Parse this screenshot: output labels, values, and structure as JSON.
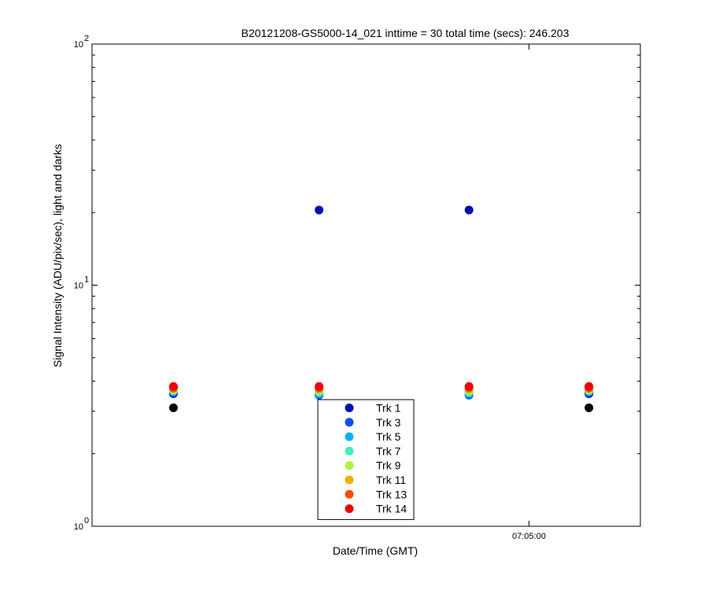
{
  "chart_data": {
    "type": "scatter",
    "title": "B20121208-GS5000-14_021 inttime = 30 total time (secs): 246.203",
    "xlabel": "Date/Time (GMT)",
    "ylabel": "Signal Intensity (ADU/pix/sec), light and darks",
    "yscale": "log",
    "ylim": [
      1,
      100
    ],
    "yticks": [
      {
        "base": "10",
        "exp": "0"
      },
      {
        "base": "10",
        "exp": "1"
      },
      {
        "base": "10",
        "exp": "2"
      }
    ],
    "xlim": [
      "07:03:18",
      "07:05:26"
    ],
    "xticks": [
      "07:05:00"
    ],
    "legend_position": "bottom-center",
    "grid": false,
    "series": [
      {
        "name": "Trk 1",
        "color": "#0010b0",
        "points": [
          {
            "x": "07:03:37",
            "y": 3.55
          },
          {
            "x": "07:04:11",
            "y": 20.5
          },
          {
            "x": "07:04:46",
            "y": 20.5
          },
          {
            "x": "07:05:14",
            "y": 3.55
          }
        ]
      },
      {
        "name": "Trk 3",
        "color": "#0050f0",
        "points": [
          {
            "x": "07:03:37",
            "y": 3.58
          },
          {
            "x": "07:04:11",
            "y": 3.5
          },
          {
            "x": "07:04:46",
            "y": 3.5
          },
          {
            "x": "07:05:14",
            "y": 3.58
          }
        ]
      },
      {
        "name": "Trk 5",
        "color": "#00b0f0",
        "points": [
          {
            "x": "07:03:37",
            "y": 3.62
          },
          {
            "x": "07:04:11",
            "y": 3.55
          },
          {
            "x": "07:04:46",
            "y": 3.55
          },
          {
            "x": "07:05:14",
            "y": 3.62
          }
        ]
      },
      {
        "name": "Trk 7",
        "color": "#40f0c0",
        "points": [
          {
            "x": "07:03:37",
            "y": 3.65
          },
          {
            "x": "07:04:11",
            "y": 3.6
          },
          {
            "x": "07:04:46",
            "y": 3.6
          },
          {
            "x": "07:05:14",
            "y": 3.65
          }
        ]
      },
      {
        "name": "Trk 9",
        "color": "#b0f040",
        "points": [
          {
            "x": "07:03:37",
            "y": 3.68
          },
          {
            "x": "07:04:11",
            "y": 3.65
          },
          {
            "x": "07:04:46",
            "y": 3.65
          },
          {
            "x": "07:05:14",
            "y": 3.68
          }
        ]
      },
      {
        "name": "Trk 11",
        "color": "#f0b000",
        "points": [
          {
            "x": "07:03:37",
            "y": 3.72
          },
          {
            "x": "07:04:11",
            "y": 3.7
          },
          {
            "x": "07:04:46",
            "y": 3.7
          },
          {
            "x": "07:05:14",
            "y": 3.72
          }
        ]
      },
      {
        "name": "Trk 13",
        "color": "#f05000",
        "points": [
          {
            "x": "07:03:37",
            "y": 3.75
          },
          {
            "x": "07:04:11",
            "y": 3.75
          },
          {
            "x": "07:04:46",
            "y": 3.75
          },
          {
            "x": "07:05:14",
            "y": 3.75
          }
        ]
      },
      {
        "name": "Trk 14",
        "color": "#f00000",
        "points": [
          {
            "x": "07:03:37",
            "y": 3.8
          },
          {
            "x": "07:04:11",
            "y": 3.8
          },
          {
            "x": "07:04:46",
            "y": 3.8
          },
          {
            "x": "07:05:14",
            "y": 3.8
          }
        ]
      }
    ],
    "dark_points": {
      "color": "#000000",
      "points": [
        {
          "x": "07:03:37",
          "y": 3.1
        },
        {
          "x": "07:03:37",
          "y": 3.55
        },
        {
          "x": "07:03:37",
          "y": 3.62
        },
        {
          "x": "07:03:37",
          "y": 3.7
        },
        {
          "x": "07:03:37",
          "y": 3.78
        },
        {
          "x": "07:05:14",
          "y": 3.1
        },
        {
          "x": "07:05:14",
          "y": 3.55
        },
        {
          "x": "07:05:14",
          "y": 3.62
        },
        {
          "x": "07:05:14",
          "y": 3.7
        },
        {
          "x": "07:05:14",
          "y": 3.78
        }
      ]
    }
  }
}
